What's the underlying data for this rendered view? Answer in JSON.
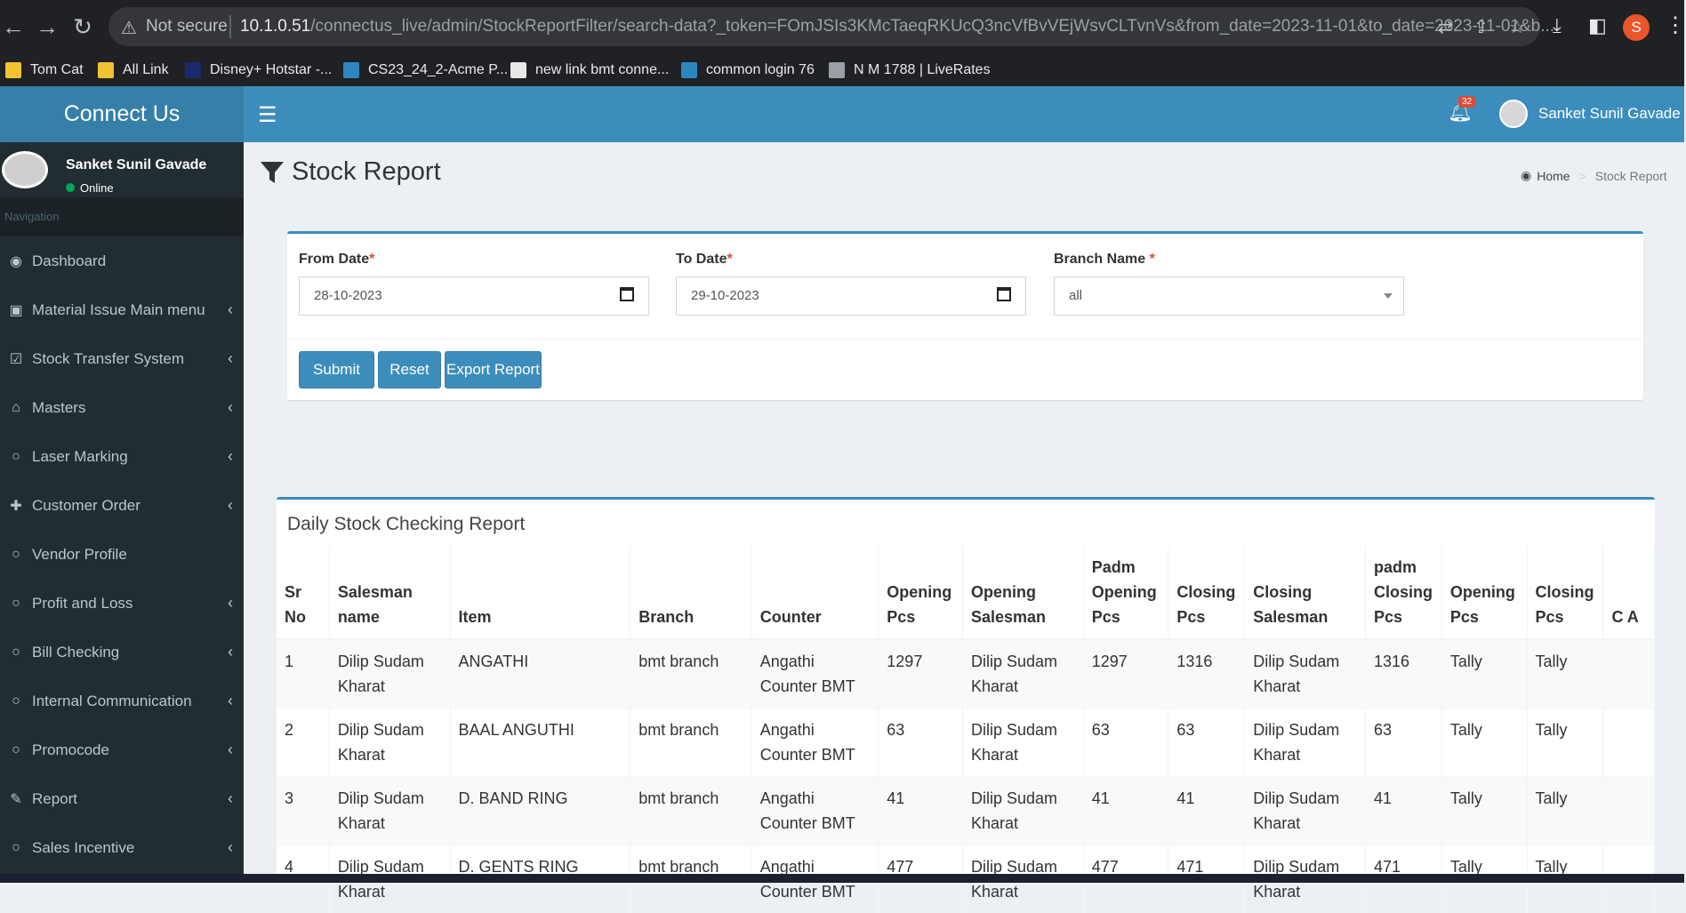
{
  "browser": {
    "not_secure": "Not secure",
    "url_host": "10.1.0.51",
    "url_rest": "/connectus_live/admin/StockReportFilter/search-data?_token=FOmJSIs3KMcTaeqRKUcQ3ncVfBvVEjWsvCLTvnVs&from_date=2023-11-01&to_date=2023-11-01&b...",
    "profile_initial": "S",
    "bookmarks": [
      {
        "label": "Tom Cat",
        "color": "#f1c232"
      },
      {
        "label": "All Link",
        "color": "#f1c232"
      },
      {
        "label": "Disney+ Hotstar -...",
        "color": "#1a2a6c"
      },
      {
        "label": "CS23_24_2-Acme P...",
        "color": "#2e86c1"
      },
      {
        "label": "new link bmt conne...",
        "color": "#e8e8e8"
      },
      {
        "label": "common login 76",
        "color": "#2e86c1"
      },
      {
        "label": "N M 1788 | LiveRates",
        "color": "#9aa0a6"
      }
    ]
  },
  "app": {
    "logo": "Connect Us",
    "notification_count": "32",
    "user_name": "Sanket Sunil Gavade",
    "status": "Online",
    "nav_header": "Navigation"
  },
  "sidebar": {
    "items": [
      {
        "label": "Dashboard",
        "icon": "dashboard-icon",
        "glyph": "◉",
        "chevron": ""
      },
      {
        "label": "Material Issue Main menu",
        "icon": "money-icon",
        "glyph": "▣",
        "chevron": "‹"
      },
      {
        "label": "Stock Transfer System",
        "icon": "check-square-icon",
        "glyph": "☑",
        "chevron": "‹"
      },
      {
        "label": "Masters",
        "icon": "home-icon",
        "glyph": "⌂",
        "chevron": "‹"
      },
      {
        "label": "Laser Marking",
        "icon": "circle-icon",
        "glyph": "○",
        "chevron": "‹"
      },
      {
        "label": "Customer Order",
        "icon": "plus-icon",
        "glyph": "✚",
        "chevron": "‹"
      },
      {
        "label": "Vendor Profile",
        "icon": "circle-icon",
        "glyph": "○",
        "chevron": ""
      },
      {
        "label": "Profit and Loss",
        "icon": "circle-icon",
        "glyph": "○",
        "chevron": "‹"
      },
      {
        "label": "Bill Checking",
        "icon": "circle-icon",
        "glyph": "○",
        "chevron": "‹"
      },
      {
        "label": "Internal Communication",
        "icon": "circle-icon",
        "glyph": "○",
        "chevron": "‹"
      },
      {
        "label": "Promocode",
        "icon": "circle-icon",
        "glyph": "○",
        "chevron": "‹"
      },
      {
        "label": "Report",
        "icon": "pencil-icon",
        "glyph": "✎",
        "chevron": "‹"
      },
      {
        "label": "Sales Incentive",
        "icon": "circle-icon",
        "glyph": "○",
        "chevron": "‹"
      }
    ]
  },
  "page": {
    "title": "Stock Report",
    "breadcrumb_home": "Home",
    "breadcrumb_current": "Stock Report"
  },
  "filter": {
    "from_label": "From Date",
    "from_value": "28-10-2023",
    "to_label": "To Date",
    "to_value": "29-10-2023",
    "branch_label": "Branch Name",
    "branch_value": "all",
    "required_mark": "*",
    "submit": "Submit",
    "reset": "Reset",
    "export": "Export Report"
  },
  "report": {
    "title": "Daily Stock Checking Report",
    "headers": [
      "Sr No",
      "Salesman name",
      "Item",
      "Branch",
      "Counter",
      "Opening Pcs",
      "Opening Salesman",
      "Padm Opening Pcs",
      "Closing Pcs",
      "Closing Salesman",
      "padm Closing Pcs",
      "Opening Pcs",
      "Closing Pcs",
      "C A"
    ],
    "rows": [
      [
        "1",
        "Dilip Sudam Kharat",
        "ANGATHI",
        "bmt branch",
        "Angathi Counter BMT",
        "1297",
        "Dilip Sudam Kharat",
        "1297",
        "1316",
        "Dilip Sudam Kharat",
        "1316",
        "Tally",
        "Tally",
        ""
      ],
      [
        "2",
        "Dilip Sudam Kharat",
        "BAAL ANGUTHI",
        "bmt branch",
        "Angathi Counter BMT",
        "63",
        "Dilip Sudam Kharat",
        "63",
        "63",
        "Dilip Sudam Kharat",
        "63",
        "Tally",
        "Tally",
        ""
      ],
      [
        "3",
        "Dilip Sudam Kharat",
        "D. BAND RING",
        "bmt branch",
        "Angathi Counter BMT",
        "41",
        "Dilip Sudam Kharat",
        "41",
        "41",
        "Dilip Sudam Kharat",
        "41",
        "Tally",
        "Tally",
        ""
      ],
      [
        "4",
        "Dilip Sudam Kharat",
        "D. GENTS RING",
        "bmt branch",
        "Angathi Counter BMT",
        "477",
        "Dilip Sudam Kharat",
        "477",
        "471",
        "Dilip Sudam Kharat",
        "471",
        "Tally",
        "Tally",
        ""
      ]
    ]
  }
}
